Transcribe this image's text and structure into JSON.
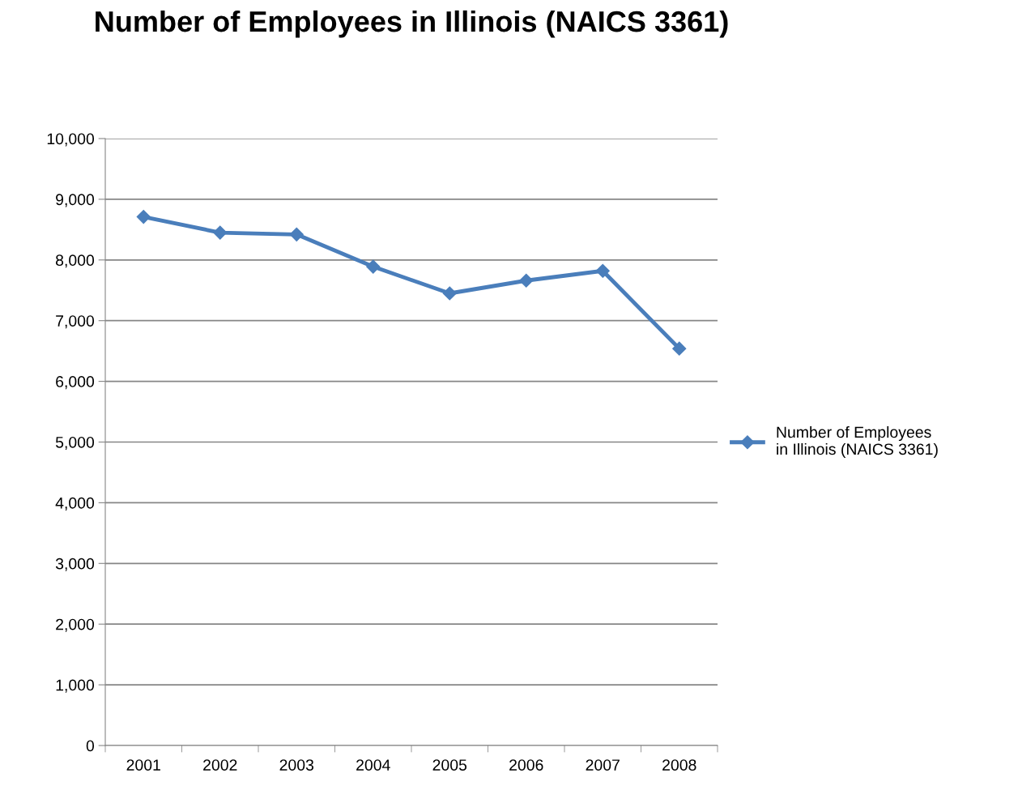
{
  "chart_data": {
    "type": "line",
    "title": "Number of Employees in Illinois (NAICS 3361)",
    "categories": [
      "2001",
      "2002",
      "2003",
      "2004",
      "2005",
      "2006",
      "2007",
      "2008"
    ],
    "series": [
      {
        "name": "Number of Employees in Illinois (NAICS 3361)",
        "color": "#4a7ebb",
        "values": [
          8710,
          8450,
          8420,
          7890,
          7450,
          7660,
          7820,
          6540
        ]
      }
    ],
    "ylim": [
      0,
      10000
    ],
    "yticks": [
      {
        "value": 0,
        "label": "0"
      },
      {
        "value": 1000,
        "label": "1,000"
      },
      {
        "value": 2000,
        "label": "2,000"
      },
      {
        "value": 3000,
        "label": "3,000"
      },
      {
        "value": 4000,
        "label": "4,000"
      },
      {
        "value": 5000,
        "label": "5,000"
      },
      {
        "value": 6000,
        "label": "6,000"
      },
      {
        "value": 7000,
        "label": "7,000"
      },
      {
        "value": 8000,
        "label": "8,000"
      },
      {
        "value": 9000,
        "label": "9,000"
      },
      {
        "value": 10000,
        "label": "10,000"
      }
    ],
    "grid": "y",
    "legend": "right",
    "marker": "diamond",
    "line_style": "solid"
  }
}
